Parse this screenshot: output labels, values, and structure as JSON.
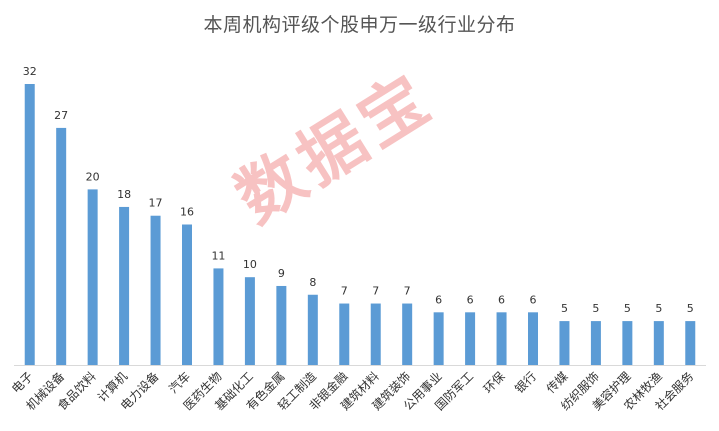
{
  "chart_data": {
    "type": "bar",
    "title": "本周机构评级个股申万一级行业分布",
    "categories": [
      "电子",
      "机械设备",
      "食品饮料",
      "计算机",
      "电力设备",
      "汽车",
      "医药生物",
      "基础化工",
      "有色金属",
      "轻工制造",
      "非银金融",
      "建筑材料",
      "建筑装饰",
      "公用事业",
      "国防军工",
      "环保",
      "银行",
      "传媒",
      "纺织服饰",
      "美容护理",
      "农林牧渔",
      "社会服务"
    ],
    "values": [
      32,
      27,
      20,
      18,
      17,
      16,
      11,
      10,
      9,
      8,
      7,
      7,
      7,
      6,
      6,
      6,
      6,
      5,
      5,
      5,
      5,
      5
    ],
    "data_labels": true,
    "xlabel": "",
    "ylabel": "",
    "ylim": [
      0,
      32
    ],
    "grid": false,
    "legend": "none",
    "bar_color": "#5b9bd5",
    "label_color": "#333333",
    "axis_color": "#d9d9d9",
    "watermark": "数据宝",
    "watermark_color": "#ee7878"
  }
}
